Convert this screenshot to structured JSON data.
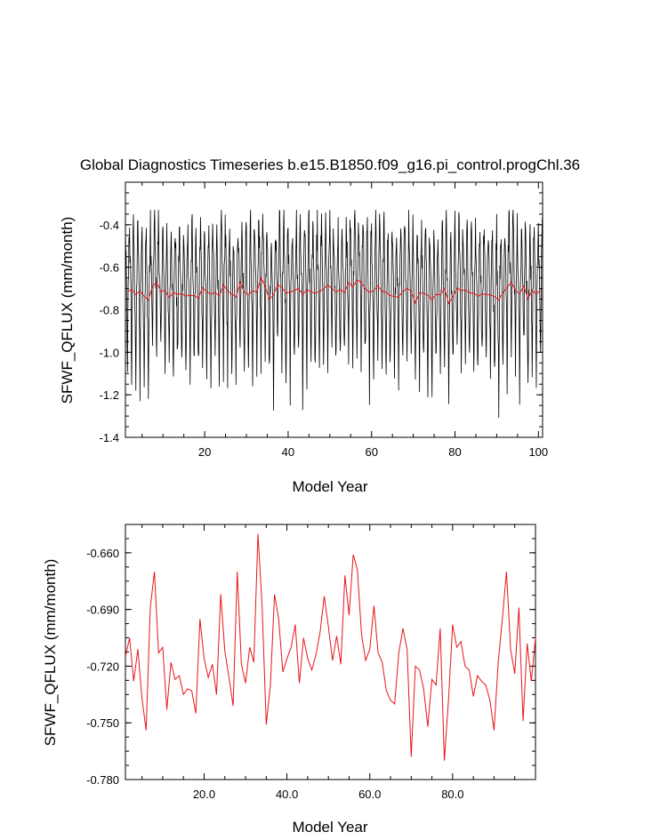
{
  "chart_data": [
    {
      "type": "line",
      "title": "Global Diagnostics Timeseries b.e15.B1850.f09_g16.pi_control.progChl.36",
      "xlabel": "Model Year",
      "ylabel": "SFWF_QFLUX (mm/month)",
      "xlim": [
        1,
        101
      ],
      "ylim": [
        -1.4,
        -0.2
      ],
      "xticks": [
        20,
        40,
        60,
        80,
        100
      ],
      "xtick_labels": [
        "20",
        "40",
        "60",
        "80",
        "100"
      ],
      "yticks": [
        -1.4,
        -1.2,
        -1.0,
        -0.8,
        -0.6,
        -0.4
      ],
      "ytick_labels": [
        "-1.4",
        "-1.2",
        "-1.0",
        "-0.8",
        "-0.6",
        "-0.4"
      ],
      "series": [
        {
          "color": "#000000",
          "note_monthly": true,
          "monthly_profile": [
            -0.45,
            -0.55,
            -0.62,
            -0.7,
            -0.8,
            -0.95,
            -1.05,
            -0.9,
            -0.72,
            -0.62,
            -0.52,
            -0.44
          ]
        },
        {
          "color": "#e8141b"
        }
      ]
    },
    {
      "type": "line",
      "title": "",
      "xlabel": "Model Year",
      "ylabel": "SFWF_QFLUX (mm/month)",
      "xlim": [
        1,
        100
      ],
      "ylim": [
        -0.78,
        -0.645
      ],
      "xticks": [
        20,
        40,
        60,
        80
      ],
      "xtick_labels": [
        "20.0",
        "40.0",
        "60.0",
        "80.0"
      ],
      "yticks": [
        -0.78,
        -0.75,
        -0.72,
        -0.69,
        -0.66
      ],
      "ytick_labels": [
        "-0.780",
        "-0.750",
        "-0.720",
        "-0.690",
        "-0.660"
      ],
      "series": [
        {
          "color": "#e8141b",
          "x_start": 1,
          "values": [
            -0.715,
            -0.705,
            -0.728,
            -0.711,
            -0.737,
            -0.754,
            -0.689,
            -0.67,
            -0.713,
            -0.71,
            -0.743,
            -0.718,
            -0.727,
            -0.725,
            -0.735,
            -0.732,
            -0.733,
            -0.745,
            -0.695,
            -0.716,
            -0.726,
            -0.719,
            -0.735,
            -0.682,
            -0.712,
            -0.726,
            -0.741,
            -0.67,
            -0.719,
            -0.729,
            -0.71,
            -0.718,
            -0.65,
            -0.688,
            -0.751,
            -0.73,
            -0.682,
            -0.695,
            -0.723,
            -0.716,
            -0.71,
            -0.698,
            -0.729,
            -0.705,
            -0.716,
            -0.722,
            -0.714,
            -0.702,
            -0.683,
            -0.699,
            -0.717,
            -0.704,
            -0.719,
            -0.672,
            -0.693,
            -0.661,
            -0.669,
            -0.703,
            -0.717,
            -0.711,
            -0.688,
            -0.713,
            -0.718,
            -0.733,
            -0.738,
            -0.74,
            -0.713,
            -0.7,
            -0.711,
            -0.768,
            -0.72,
            -0.722,
            -0.732,
            -0.752,
            -0.727,
            -0.73,
            -0.7,
            -0.77,
            -0.738,
            -0.698,
            -0.71,
            -0.707,
            -0.72,
            -0.722,
            -0.736,
            -0.725,
            -0.728,
            -0.73,
            -0.738,
            -0.754,
            -0.718,
            -0.695,
            -0.67,
            -0.711,
            -0.724,
            -0.689,
            -0.749,
            -0.708,
            -0.728,
            -0.705
          ]
        }
      ]
    }
  ]
}
